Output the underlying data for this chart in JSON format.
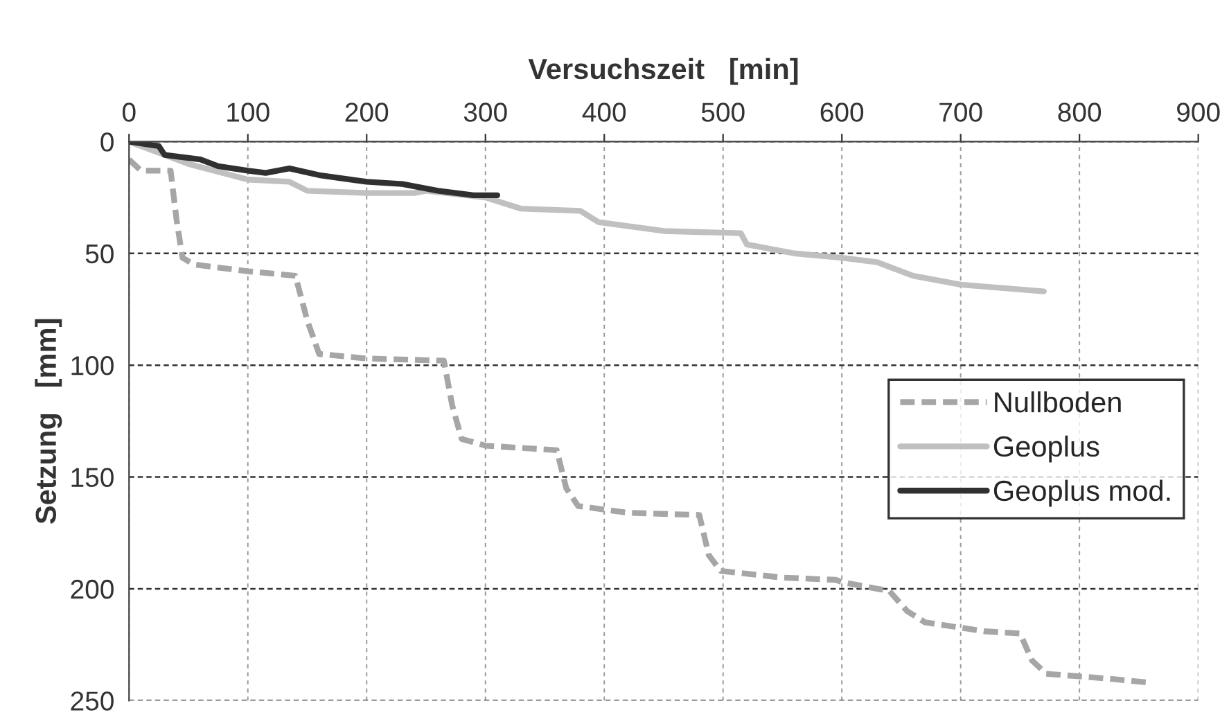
{
  "chart_data": {
    "type": "line",
    "xlabel": "Versuchszeit   [min]",
    "ylabel": "Setzung   [mm]",
    "xlim": [
      0,
      900
    ],
    "xticks": [
      0,
      100,
      200,
      300,
      400,
      500,
      600,
      700,
      800,
      900
    ],
    "ylim": [
      250,
      0
    ],
    "yticks": [
      0,
      50,
      100,
      150,
      200,
      250
    ],
    "grid": true,
    "legend": "right",
    "series": [
      {
        "name": "Nullboden",
        "color": "#a6a6a6",
        "line_style": "dashed",
        "x": [
          0,
          10,
          35,
          40,
          45,
          55,
          100,
          140,
          150,
          160,
          200,
          265,
          272,
          280,
          300,
          360,
          368,
          378,
          420,
          480,
          488,
          498,
          550,
          595,
          600,
          640,
          655,
          670,
          720,
          750,
          760,
          772,
          820,
          860
        ],
        "values": [
          8,
          13,
          13,
          35,
          52,
          55,
          58,
          60,
          80,
          95,
          97,
          98,
          118,
          133,
          136,
          138,
          155,
          163,
          166,
          167,
          185,
          192,
          195,
          196,
          197,
          201,
          210,
          215,
          219,
          220,
          232,
          238,
          240,
          242
        ]
      },
      {
        "name": "Geoplus",
        "color": "#c0c0c0",
        "line_style": "solid",
        "x": [
          0,
          50,
          100,
          135,
          150,
          200,
          240,
          250,
          300,
          330,
          380,
          395,
          450,
          515,
          520,
          560,
          600,
          630,
          660,
          700,
          770
        ],
        "values": [
          0,
          10,
          17,
          18,
          22,
          23,
          23,
          22,
          25,
          30,
          31,
          36,
          40,
          41,
          46,
          50,
          52,
          54,
          60,
          64,
          67
        ]
      },
      {
        "name": "Geoplus mod.",
        "color": "#303030",
        "line_style": "solid",
        "x": [
          0,
          25,
          30,
          60,
          75,
          100,
          115,
          135,
          160,
          200,
          230,
          260,
          290,
          310
        ],
        "values": [
          0,
          2,
          6,
          8,
          11,
          13,
          14,
          12,
          15,
          18,
          19,
          22,
          24,
          24
        ]
      }
    ]
  }
}
